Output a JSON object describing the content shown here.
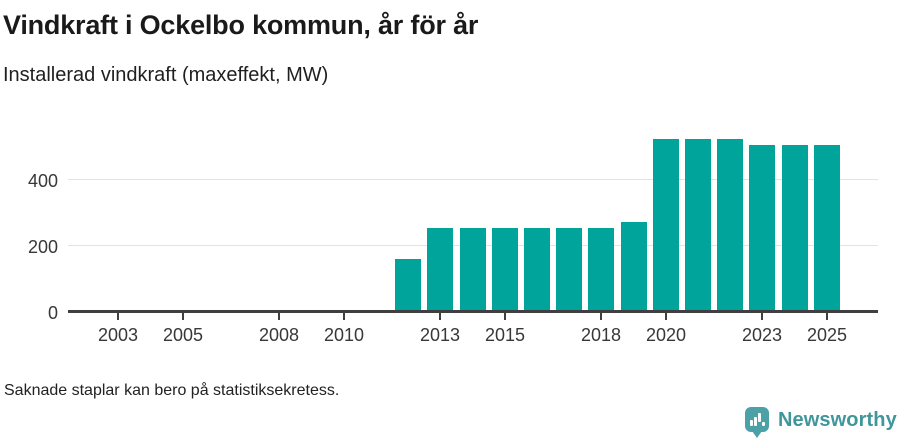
{
  "header": {
    "title": "Vindkraft i Ockelbo kommun, år för år",
    "subtitle": "Installerad vindkraft (maxeffekt, MW)"
  },
  "footer": {
    "footnote": "Saknade staplar kan bero på statistiksekretess."
  },
  "branding": {
    "logo_text": "Newsworthy",
    "logo_icon": "newsworthy-pin-barchart-icon",
    "logo_text_color": "#3f969b",
    "logo_pin_color": "#4ba1a6"
  },
  "colors": {
    "bar": "#00a49a",
    "axis": "#3f3f3f",
    "gridline": "#e3e3e3",
    "title_text": "#1a1a1a",
    "tick_label": "#383838"
  },
  "chart_data": {
    "type": "bar",
    "title": "Vindkraft i Ockelbo kommun, år för år",
    "subtitle": "Installerad vindkraft (maxeffekt, MW)",
    "xlabel": "",
    "ylabel": "Installerad vindkraft (maxeffekt, MW)",
    "x": [
      2012,
      2013,
      2014,
      2015,
      2016,
      2017,
      2018,
      2019,
      2020,
      2021,
      2022,
      2023,
      2024,
      2025
    ],
    "values": [
      156,
      250,
      250,
      250,
      250,
      250,
      250,
      268,
      520,
      520,
      520,
      500,
      500,
      500
    ],
    "series_unit": "MW",
    "x_ticks": [
      2003,
      2005,
      2008,
      2010,
      2013,
      2015,
      2018,
      2020,
      2023,
      2025
    ],
    "y_ticks": [
      0,
      200,
      400
    ],
    "x_range": [
      2001.5,
      2026.5
    ],
    "ylim": [
      0,
      560
    ],
    "grid": "horizontal-only",
    "legend": "none"
  }
}
